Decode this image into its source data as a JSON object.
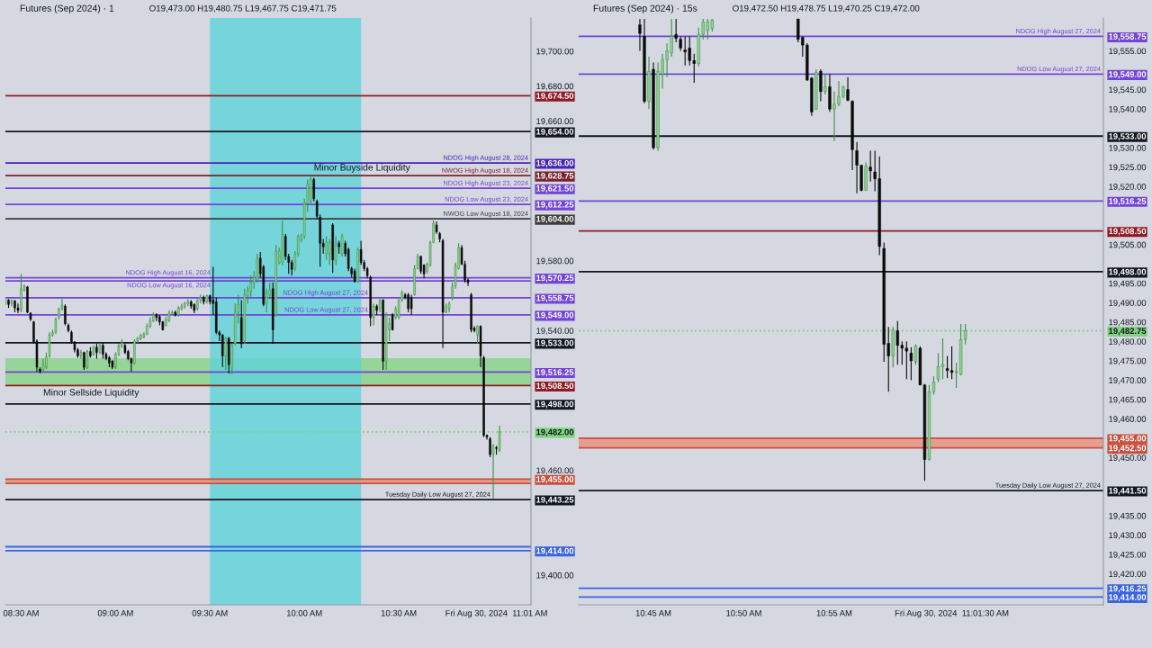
{
  "chart_data": [
    {
      "type": "candlestick",
      "title": "Futures (Sep 2024) · 1",
      "subtitle": "O19,473.00 H19,480.75 L19,467.75 C19,471.75",
      "x": [
        "2024-08-30T08:25",
        "2024-08-30T08:26",
        "2024-08-30T08:27",
        "2024-08-30T08:28",
        "2024-08-30T08:29",
        "2024-08-30T08:30",
        "2024-08-30T08:31",
        "2024-08-30T08:32",
        "2024-08-30T08:33",
        "2024-08-30T08:34",
        "2024-08-30T08:35",
        "2024-08-30T08:36",
        "2024-08-30T08:37",
        "2024-08-30T08:38",
        "2024-08-30T08:39",
        "2024-08-30T08:40",
        "2024-08-30T08:41",
        "2024-08-30T08:42",
        "2024-08-30T08:43",
        "2024-08-30T08:44",
        "2024-08-30T08:45",
        "2024-08-30T08:46",
        "2024-08-30T08:47",
        "2024-08-30T08:48",
        "2024-08-30T08:49",
        "2024-08-30T08:50",
        "2024-08-30T08:51",
        "2024-08-30T08:52",
        "2024-08-30T08:53",
        "2024-08-30T08:54",
        "2024-08-30T08:55",
        "2024-08-30T08:56",
        "2024-08-30T08:57",
        "2024-08-30T08:58",
        "2024-08-30T08:59",
        "2024-08-30T09:00",
        "2024-08-30T09:01",
        "2024-08-30T09:02",
        "2024-08-30T09:03",
        "2024-08-30T09:04",
        "2024-08-30T09:05",
        "2024-08-30T09:06",
        "2024-08-30T09:07",
        "2024-08-30T09:08",
        "2024-08-30T09:09",
        "2024-08-30T09:10",
        "2024-08-30T09:11",
        "2024-08-30T09:12",
        "2024-08-30T09:13",
        "2024-08-30T09:14",
        "2024-08-30T09:15",
        "2024-08-30T09:16",
        "2024-08-30T09:17",
        "2024-08-30T09:18",
        "2024-08-30T09:19",
        "2024-08-30T09:20",
        "2024-08-30T09:21",
        "2024-08-30T09:22",
        "2024-08-30T09:23",
        "2024-08-30T09:24",
        "2024-08-30T09:25",
        "2024-08-30T09:26",
        "2024-08-30T09:27",
        "2024-08-30T09:28",
        "2024-08-30T09:29",
        "2024-08-30T09:30",
        "2024-08-30T09:31",
        "2024-08-30T09:32",
        "2024-08-30T09:33",
        "2024-08-30T09:34",
        "2024-08-30T09:35",
        "2024-08-30T09:36",
        "2024-08-30T09:37",
        "2024-08-30T09:38",
        "2024-08-30T09:39",
        "2024-08-30T09:40",
        "2024-08-30T09:41",
        "2024-08-30T09:42",
        "2024-08-30T09:43",
        "2024-08-30T09:44",
        "2024-08-30T09:45",
        "2024-08-30T09:46",
        "2024-08-30T09:47",
        "2024-08-30T09:48",
        "2024-08-30T09:49",
        "2024-08-30T09:50",
        "2024-08-30T09:51",
        "2024-08-30T09:52",
        "2024-08-30T09:53",
        "2024-08-30T09:54",
        "2024-08-30T09:55",
        "2024-08-30T09:56",
        "2024-08-30T09:57",
        "2024-08-30T09:58",
        "2024-08-30T09:59",
        "2024-08-30T10:00",
        "2024-08-30T10:01",
        "2024-08-30T10:02",
        "2024-08-30T10:03",
        "2024-08-30T10:04",
        "2024-08-30T10:05",
        "2024-08-30T10:06",
        "2024-08-30T10:07",
        "2024-08-30T10:08",
        "2024-08-30T10:09",
        "2024-08-30T10:10",
        "2024-08-30T10:11",
        "2024-08-30T10:12",
        "2024-08-30T10:13",
        "2024-08-30T10:14",
        "2024-08-30T10:15",
        "2024-08-30T10:16",
        "2024-08-30T10:17",
        "2024-08-30T10:18",
        "2024-08-30T10:19",
        "2024-08-30T10:20",
        "2024-08-30T10:21",
        "2024-08-30T10:22",
        "2024-08-30T10:23",
        "2024-08-30T10:24",
        "2024-08-30T10:25",
        "2024-08-30T10:26",
        "2024-08-30T10:27",
        "2024-08-30T10:28",
        "2024-08-30T10:29",
        "2024-08-30T10:30",
        "2024-08-30T10:31",
        "2024-08-30T10:32",
        "2024-08-30T10:33",
        "2024-08-30T10:34",
        "2024-08-30T10:35",
        "2024-08-30T10:36",
        "2024-08-30T10:37",
        "2024-08-30T10:38",
        "2024-08-30T10:39",
        "2024-08-30T10:40",
        "2024-08-30T10:41",
        "2024-08-30T10:42",
        "2024-08-30T10:43",
        "2024-08-30T10:44",
        "2024-08-30T10:45",
        "2024-08-30T10:46",
        "2024-08-30T10:47",
        "2024-08-30T10:48",
        "2024-08-30T10:49",
        "2024-08-30T10:50",
        "2024-08-30T10:51",
        "2024-08-30T10:52",
        "2024-08-30T10:53",
        "2024-08-30T10:54",
        "2024-08-30T10:55",
        "2024-08-30T10:56",
        "2024-08-30T10:57",
        "2024-08-30T10:58",
        "2024-08-30T10:59",
        "2024-08-30T11:00",
        "2024-08-30T11:01",
        "2024-08-30T11:02"
      ],
      "ohlc": [
        [
          19555.5,
          19558,
          19554.5,
          19557.5
        ],
        [
          19557.5,
          19558,
          19553,
          19555
        ],
        [
          19555.5,
          19558,
          19554,
          19557
        ],
        [
          19557,
          19557.5,
          19550.5,
          19553
        ],
        [
          19553,
          19555.5,
          19550,
          19551.5
        ],
        [
          19551.5,
          19572.5,
          19550.5,
          19564
        ],
        [
          19563,
          19566.5,
          19562.5,
          19565.5
        ],
        [
          19565,
          19565.5,
          19550,
          19550.5
        ],
        [
          19550,
          19550.5,
          19545.5,
          19546.5
        ],
        [
          19545,
          19545.5,
          19532.5,
          19533.5
        ],
        [
          19534,
          19535,
          19516.5,
          19519
        ],
        [
          19518,
          19519,
          19515.5,
          19516.5
        ],
        [
          19517.5,
          19524,
          19516.5,
          19520
        ],
        [
          19519,
          19527.5,
          19518,
          19525
        ],
        [
          19525.5,
          19539,
          19524.5,
          19537.5
        ],
        [
          19537.5,
          19540.5,
          19536.5,
          19539
        ],
        [
          19539,
          19547.5,
          19538,
          19546.5
        ],
        [
          19547.5,
          19553,
          19546.5,
          19552.5
        ],
        [
          19552.5,
          19558,
          19551.5,
          19554.5
        ],
        [
          19554,
          19555,
          19543,
          19544
        ],
        [
          19543,
          19544,
          19539,
          19540
        ],
        [
          19539,
          19540,
          19532.5,
          19533.5
        ],
        [
          19533.5,
          19534,
          19527.5,
          19529
        ],
        [
          19529,
          19530,
          19524.5,
          19525.5
        ],
        [
          19525.5,
          19529,
          19524,
          19527.5
        ],
        [
          19527.5,
          19528,
          19517.5,
          19519
        ],
        [
          19519,
          19529,
          19518,
          19528
        ],
        [
          19528,
          19530.5,
          19524.5,
          19525.5
        ],
        [
          19526.5,
          19531.5,
          19525.5,
          19530.5
        ],
        [
          19530.5,
          19532.5,
          19524,
          19527.5
        ],
        [
          19527.5,
          19533,
          19526.5,
          19531.5
        ],
        [
          19531.5,
          19533,
          19524,
          19526.5
        ],
        [
          19526.5,
          19527.5,
          19523,
          19524
        ],
        [
          19524.5,
          19525.5,
          19519,
          19521.5
        ],
        [
          19522.5,
          19523,
          19518,
          19519
        ],
        [
          19519,
          19527.5,
          19518,
          19526.5
        ],
        [
          19526.5,
          19532.5,
          19525.5,
          19531.5
        ],
        [
          19531.5,
          19535,
          19530,
          19533
        ],
        [
          19531.5,
          19532.5,
          19526.5,
          19527.5
        ],
        [
          19528,
          19529,
          19523,
          19524
        ],
        [
          19524,
          19524.5,
          19516.5,
          19521.5
        ],
        [
          19521.5,
          19535,
          19520.5,
          19534
        ],
        [
          19534,
          19536.5,
          19533,
          19535.5
        ],
        [
          19535.5,
          19538,
          19534.5,
          19537.5
        ],
        [
          19536.5,
          19539,
          19535.5,
          19538
        ],
        [
          19538,
          19544,
          19537.5,
          19542.5
        ],
        [
          19542.5,
          19547.5,
          19541.5,
          19545.5
        ],
        [
          19545.5,
          19550.5,
          19545,
          19549
        ],
        [
          19549,
          19550,
          19545.5,
          19547.5
        ],
        [
          19548,
          19549,
          19543,
          19545
        ],
        [
          19545,
          19545.5,
          19540,
          19540.5
        ],
        [
          19543,
          19548,
          19542.5,
          19546.5
        ],
        [
          19545.5,
          19551.5,
          19545,
          19550
        ],
        [
          19550,
          19551.5,
          19549,
          19550.5
        ],
        [
          19550.5,
          19551.5,
          19548,
          19549
        ],
        [
          19549,
          19554,
          19548,
          19553
        ],
        [
          19552.5,
          19555.5,
          19551.5,
          19554
        ],
        [
          19554,
          19556.5,
          19552.5,
          19555.5
        ],
        [
          19555.5,
          19558,
          19554,
          19556.5
        ],
        [
          19556.5,
          19557.5,
          19552.5,
          19554
        ],
        [
          19555,
          19555.5,
          19550,
          19551.5
        ],
        [
          19552.5,
          19558,
          19551.5,
          19557.5
        ],
        [
          19557.5,
          19560.5,
          19555.5,
          19559
        ],
        [
          19559,
          19560,
          19555,
          19556.5
        ],
        [
          19556.5,
          19560.5,
          19555.5,
          19560
        ],
        [
          19560,
          19560.5,
          19555,
          19556.5
        ],
        [
          19557.5,
          19576.5,
          19549,
          19555.5
        ],
        [
          19556.5,
          19559,
          19538,
          19539
        ],
        [
          19539,
          19540,
          19534,
          19537.5
        ],
        [
          19537.5,
          19538,
          19519,
          19525.5
        ],
        [
          19525.5,
          19536.5,
          19517.5,
          19535.5
        ],
        [
          19535.5,
          19536.5,
          19515.5,
          19520.5
        ],
        [
          19519,
          19532.5,
          19515,
          19531.5
        ],
        [
          19532.5,
          19555.5,
          19531.5,
          19550.5
        ],
        [
          19550.5,
          19560.5,
          19544,
          19555
        ],
        [
          19547.5,
          19557.5,
          19530,
          19532.5
        ],
        [
          19534,
          19564,
          19532.5,
          19560.5
        ],
        [
          19560,
          19565.5,
          19555.5,
          19563
        ],
        [
          19562.5,
          19571.5,
          19559,
          19567.5
        ],
        [
          19567.5,
          19574,
          19564,
          19570.5
        ],
        [
          19569,
          19584,
          19567.5,
          19581.5
        ],
        [
          19581.5,
          19585,
          19570.5,
          19572.5
        ],
        [
          19576.5,
          19577.5,
          19554,
          19555
        ],
        [
          19555.5,
          19564,
          19550.5,
          19561.5
        ],
        [
          19560.5,
          19567.5,
          19558,
          19563
        ],
        [
          19564,
          19567.5,
          19532.5,
          19540.5
        ],
        [
          19549,
          19589,
          19548,
          19585.5
        ],
        [
          19579,
          19587.5,
          19578,
          19585.5
        ],
        [
          19579,
          19603,
          19577.5,
          19595
        ],
        [
          19594,
          19595.5,
          19580.5,
          19582.5
        ],
        [
          19582.5,
          19584,
          19572.5,
          19579
        ],
        [
          19579,
          19580.5,
          19571.5,
          19575
        ],
        [
          19575.5,
          19585.5,
          19574,
          19584
        ],
        [
          19584,
          19595,
          19582.5,
          19594
        ],
        [
          19592.5,
          19595.5,
          19590.5,
          19594
        ],
        [
          19594,
          19615.5,
          19592.5,
          19613
        ],
        [
          19613,
          19626.5,
          19608,
          19624
        ],
        [
          19614,
          19628,
          19612.5,
          19626.5
        ],
        [
          19626.5,
          19627.5,
          19614,
          19615.5
        ],
        [
          19614,
          19615,
          19604,
          19605.5
        ],
        [
          19605,
          19606.5,
          19576.5,
          19590
        ],
        [
          19590,
          19592.5,
          19584,
          19588
        ],
        [
          19584,
          19594,
          19580.5,
          19590.5
        ],
        [
          19584,
          19592.5,
          19577.5,
          19590.5
        ],
        [
          19600.5,
          19601.5,
          19573,
          19580.5
        ],
        [
          19580,
          19594,
          19577.5,
          19589
        ],
        [
          19590,
          19591.5,
          19584,
          19588
        ],
        [
          19584,
          19595.5,
          19582.5,
          19594
        ],
        [
          19590,
          19591.5,
          19582.5,
          19584
        ],
        [
          19586.5,
          19587.5,
          19574,
          19575.5
        ],
        [
          19575.5,
          19576.5,
          19570.5,
          19572.5
        ],
        [
          19574,
          19575.5,
          19567.5,
          19568
        ],
        [
          19568,
          19587.5,
          19567.5,
          19586.5
        ],
        [
          19586.5,
          19591.5,
          19577.5,
          19579
        ],
        [
          19579,
          19580.5,
          19574,
          19575.5
        ],
        [
          19575.5,
          19576.5,
          19570,
          19571.5
        ],
        [
          19570.5,
          19571.5,
          19542.5,
          19547.5
        ],
        [
          19547.5,
          19555.5,
          19543,
          19554
        ],
        [
          19554,
          19555,
          19549,
          19551.5
        ],
        [
          19552.5,
          19558,
          19550.5,
          19557.5
        ],
        [
          19557.5,
          19558,
          19517.5,
          19522.5
        ],
        [
          19522.5,
          19550.5,
          19517.5,
          19549
        ],
        [
          19540.5,
          19547.5,
          19534,
          19544
        ],
        [
          19549,
          19550,
          19540,
          19540.5
        ],
        [
          19547.5,
          19554,
          19546.5,
          19552.5
        ],
        [
          19547.5,
          19558,
          19546.5,
          19557.5
        ],
        [
          19557.5,
          19563,
          19556.5,
          19561.5
        ],
        [
          19560.5,
          19561.5,
          19558,
          19559
        ],
        [
          19560.5,
          19561.5,
          19550.5,
          19552.5
        ],
        [
          19559,
          19560.5,
          19549,
          19552.5
        ],
        [
          19560.5,
          19577.5,
          19560,
          19575.5
        ],
        [
          19575.5,
          19584,
          19575,
          19582.5
        ],
        [
          19582.5,
          19583,
          19572.5,
          19574
        ],
        [
          19577.5,
          19578,
          19570,
          19572.5
        ],
        [
          19574,
          19579,
          19572.5,
          19578
        ],
        [
          19577.5,
          19591.5,
          19576.5,
          19590.5
        ],
        [
          19590.5,
          19603,
          19590,
          19601.5
        ],
        [
          19600.5,
          19602.5,
          19595.5,
          19596.5
        ],
        [
          19595.5,
          19596.5,
          19590.5,
          19592.5
        ],
        [
          19591.5,
          19592.5,
          19530,
          19550.5
        ],
        [
          19550.5,
          19555.5,
          19550,
          19554
        ],
        [
          19552.5,
          19556.5,
          19550.5,
          19555.5
        ],
        [
          19559,
          19567.5,
          19557.5,
          19565.5
        ],
        [
          19565.5,
          19579,
          19564,
          19577.5
        ],
        [
          19575.5,
          19590,
          19575,
          19587.5
        ],
        [
          19587.5,
          19589,
          19577.5,
          19578
        ],
        [
          19578,
          19580,
          19567.5,
          19569
        ],
        [
          19569,
          19570,
          19565.5,
          19567.5
        ],
        [
          19560.5,
          19561.5,
          19539,
          19540.5
        ],
        [
          19541.5,
          19542.5,
          19539,
          19540
        ],
        [
          19537.5,
          19543,
          19532.5,
          19542.5
        ],
        [
          19542.5,
          19543,
          19519,
          19525.5
        ],
        [
          19524.5,
          19525.5,
          19479,
          19480
        ],
        [
          19480,
          19480.5,
          19477.5,
          19479
        ],
        [
          19478,
          19479,
          19467.5,
          19469
        ],
        [
          19469,
          19475,
          19444,
          19474
        ],
        [
          19473,
          19474,
          19469,
          19472.5
        ],
        [
          19471.5,
          19485.5,
          19470.5,
          19482
        ]
      ],
      "xlim": [
        "2024-08-30T08:25",
        "2024-08-30T11:12"
      ],
      "xticks": [
        {
          "value": "2024-08-30T08:30",
          "label": "08:30 AM"
        },
        {
          "value": "2024-08-30T09:00",
          "label": "09:00 AM"
        },
        {
          "value": "2024-08-30T09:30",
          "label": "09:30 AM"
        },
        {
          "value": "2024-08-30T10:00",
          "label": "10:00 AM"
        },
        {
          "value": "2024-08-30T10:30",
          "label": "10:30 AM"
        },
        {
          "value": "2024-08-30T11:01",
          "label": "Fri Aug 30, 2024  11:01 AM"
        }
      ],
      "ylim": [
        19383,
        19719
      ],
      "yticks": [
        {
          "value": 19700,
          "label": "19,700.00"
        },
        {
          "value": 19680,
          "label": "19,680.00"
        },
        {
          "value": 19674.5,
          "label": "19,674.50"
        },
        {
          "value": 19660,
          "label": "19,660.00"
        },
        {
          "value": 19654,
          "label": "19,654.00"
        },
        {
          "value": 19636,
          "label": "19,636.00"
        },
        {
          "value": 19628.75,
          "label": "19,628.75"
        },
        {
          "value": 19621.5,
          "label": "19,621.50"
        },
        {
          "value": 19612.25,
          "label": "19,612.25"
        },
        {
          "value": 19604,
          "label": "19,604.00"
        },
        {
          "value": 19580,
          "label": "19,580.00"
        },
        {
          "value": 19570.25,
          "label": "19,570.25"
        },
        {
          "value": 19558.75,
          "label": "19,558.75"
        },
        {
          "value": 19549,
          "label": "19,549.00"
        },
        {
          "value": 19540,
          "label": "19,540.00"
        },
        {
          "value": 19533,
          "label": "19,533.00"
        },
        {
          "value": 19516.25,
          "label": "19,516.25"
        },
        {
          "value": 19508.5,
          "label": "19,508.50"
        },
        {
          "value": 19498,
          "label": "19,498.00"
        },
        {
          "value": 19482,
          "label": "19,482.00"
        },
        {
          "value": 19460,
          "label": "19,460.00"
        },
        {
          "value": 19455,
          "label": "19,455.00"
        },
        {
          "value": 19443.25,
          "label": "19,443.25"
        },
        {
          "value": 19414,
          "label": "19,414.00"
        },
        {
          "value": 19400,
          "label": "19,400.00"
        }
      ],
      "ref_lines": [
        {
          "axis": "y",
          "value": 19674.5,
          "color": "#8e1b24"
        },
        {
          "axis": "y",
          "value": 19654,
          "color": "#131722"
        },
        {
          "axis": "y",
          "value": 19636,
          "label": "NDOG High August 28, 2024",
          "color": "#4a23b5"
        },
        {
          "axis": "y",
          "value": 19628.75,
          "label": "NWOG High August 18, 2024",
          "color": "#7a2330"
        },
        {
          "axis": "y",
          "value": 19621.5,
          "label": "NDOG High August 23, 2024",
          "color": "#7245d6"
        },
        {
          "axis": "y",
          "value": 19612.25,
          "label": "NDOG Low August 23, 2024",
          "color": "#7245d6"
        },
        {
          "axis": "y",
          "value": 19604,
          "label": "NWOG Low August 18, 2024",
          "color": "#3d3d3d"
        },
        {
          "axis": "y",
          "value": 19570.25,
          "label": "NDOG High August 16, 2024",
          "color": "#7245d6"
        },
        {
          "axis": "y",
          "value": 19568.5,
          "label": "NDOG Low August 16, 2024",
          "color": "#7245d6"
        },
        {
          "axis": "y",
          "value": 19558.75,
          "label": "NDOG High August 27, 2024",
          "color": "#7245d6"
        },
        {
          "axis": "y",
          "value": 19549,
          "label": "NDOG Low August 27, 2024",
          "color": "#7245d6"
        },
        {
          "axis": "y",
          "value": 19533,
          "color": "#131722"
        },
        {
          "axis": "y",
          "value": 19516.25,
          "color": "#7245d6"
        },
        {
          "axis": "y",
          "value": 19508.5,
          "color": "#8e1b24"
        },
        {
          "axis": "y",
          "value": 19498,
          "color": "#131722"
        },
        {
          "axis": "y",
          "value": 19482,
          "color": "#7ed47e",
          "line_style": "dotted"
        },
        {
          "axis": "y",
          "value": 19455,
          "color": "#c8503c"
        },
        {
          "axis": "y",
          "value": 19452.5,
          "color": "#c8503c"
        },
        {
          "axis": "y",
          "value": 19443.25,
          "label": "Tuesday Daily Low August 27, 2024",
          "color": "#131722"
        },
        {
          "axis": "y",
          "value": 19416.25,
          "color": "#3a64e0"
        },
        {
          "axis": "y",
          "value": 19414,
          "color": "#3a64e0"
        }
      ],
      "bands": [
        {
          "axis": "y",
          "from": 19508.75,
          "to": 19524.25,
          "color": "#86d486"
        },
        {
          "axis": "x",
          "from": "2024-08-30T09:30",
          "to": "2024-08-30T10:18",
          "color": "#5ed3d9"
        },
        {
          "axis": "y",
          "from": 19452.5,
          "to": 19455,
          "color": "#e8907a"
        }
      ],
      "annotations": [
        {
          "text": "Minor Buyside Liquidity",
          "x": "2024-08-30T10:03",
          "y": 19628.75
        },
        {
          "text": "Minor Sellside Liquidity",
          "x": "2024-08-30T08:37",
          "y": 19508.5
        }
      ]
    },
    {
      "type": "candlestick",
      "title": "Futures (Sep 2024) · 15s",
      "subtitle": "O19,472.50 H19,478.75 L19,470.25 C19,472.00",
      "x": [
        "2024-08-30T10:44:15",
        "2024-08-30T10:44:30",
        "2024-08-30T10:44:45",
        "2024-08-30T10:45:00",
        "2024-08-30T10:45:15",
        "2024-08-30T10:45:30",
        "2024-08-30T10:45:45",
        "2024-08-30T10:46:00",
        "2024-08-30T10:46:15",
        "2024-08-30T10:46:30",
        "2024-08-30T10:46:45",
        "2024-08-30T10:47:00",
        "2024-08-30T10:47:15",
        "2024-08-30T10:47:30",
        "2024-08-30T10:47:45",
        "2024-08-30T10:48:00",
        "2024-08-30T10:48:15",
        "2024-08-30T10:53:00",
        "2024-08-30T10:53:15",
        "2024-08-30T10:53:30",
        "2024-08-30T10:53:45",
        "2024-08-30T10:54:00",
        "2024-08-30T10:54:15",
        "2024-08-30T10:54:30",
        "2024-08-30T10:54:45",
        "2024-08-30T10:55:00",
        "2024-08-30T10:55:15",
        "2024-08-30T10:55:30",
        "2024-08-30T10:55:45",
        "2024-08-30T10:56:00",
        "2024-08-30T10:56:15",
        "2024-08-30T10:56:30",
        "2024-08-30T10:56:45",
        "2024-08-30T10:57:00",
        "2024-08-30T10:57:15",
        "2024-08-30T10:57:30",
        "2024-08-30T10:57:45",
        "2024-08-30T10:58:00",
        "2024-08-30T10:58:15",
        "2024-08-30T10:58:30",
        "2024-08-30T10:58:45",
        "2024-08-30T10:59:00",
        "2024-08-30T10:59:15",
        "2024-08-30T10:59:30",
        "2024-08-30T10:59:45",
        "2024-08-30T11:00:00",
        "2024-08-30T11:00:15",
        "2024-08-30T11:00:30",
        "2024-08-30T11:00:45",
        "2024-08-30T11:01:00",
        "2024-08-30T11:01:15",
        "2024-08-30T11:01:30",
        "2024-08-30T11:01:45",
        "2024-08-30T11:02:00",
        "2024-08-30T11:02:15"
      ],
      "ohlc": [
        [
          19561.75,
          19563.25,
          19555,
          19559.5
        ],
        [
          19558.75,
          19563.25,
          19541.5,
          19542
        ],
        [
          19542,
          19553.5,
          19540,
          19549.75
        ],
        [
          19550.25,
          19552,
          19529.5,
          19530
        ],
        [
          19530,
          19552,
          19529.25,
          19549.75
        ],
        [
          19549,
          19554.25,
          19545.25,
          19552.75
        ],
        [
          19552.75,
          19557,
          19548.25,
          19555
        ],
        [
          19554.5,
          19563.25,
          19553.5,
          19558.75
        ],
        [
          19559.25,
          19563.25,
          19557.25,
          19558.25
        ],
        [
          19558,
          19558.75,
          19555,
          19555.75
        ],
        [
          19555.25,
          19558.75,
          19551.25,
          19554.75
        ],
        [
          19555.75,
          19558.75,
          19551.25,
          19552.5
        ],
        [
          19552.5,
          19554.25,
          19546.75,
          19551.75
        ],
        [
          19551.75,
          19561,
          19551,
          19559.25
        ],
        [
          19559.25,
          19563.25,
          19558,
          19562.5
        ],
        [
          19560.25,
          19563.25,
          19558,
          19562.5
        ],
        [
          19560.75,
          19563.25,
          19560,
          19563
        ],
        [
          19563.25,
          19563.25,
          19557.25,
          19558
        ],
        [
          19558.5,
          19558.75,
          19553.5,
          19556.5
        ],
        [
          19556.5,
          19557,
          19547.25,
          19547.5
        ],
        [
          19548,
          19548.25,
          19538.25,
          19539.25
        ],
        [
          19540,
          19550.25,
          19539.75,
          19549.5
        ],
        [
          19549.75,
          19550.25,
          19542,
          19544.5
        ],
        [
          19544.5,
          19549,
          19543.75,
          19545.75
        ],
        [
          19545.75,
          19549,
          19539.25,
          19540
        ],
        [
          19540,
          19544.5,
          19531.75,
          19541.25
        ],
        [
          19541.25,
          19547.25,
          19540.75,
          19543.25
        ],
        [
          19543.25,
          19546,
          19542.75,
          19545.75
        ],
        [
          19545,
          19548.25,
          19542,
          19542.25
        ],
        [
          19542,
          19542.25,
          19524.25,
          19529.5
        ],
        [
          19529.25,
          19531.5,
          19518.25,
          19525.5
        ],
        [
          19525.5,
          19525.5,
          19518.75,
          19519
        ],
        [
          19519,
          19526.25,
          19519,
          19525.25
        ],
        [
          19525,
          19529.25,
          19521.25,
          19524
        ],
        [
          19523.75,
          19529.25,
          19518.75,
          19522
        ],
        [
          19522,
          19527.75,
          19502.25,
          19504.5
        ],
        [
          19504,
          19505.5,
          19474.75,
          19479.25
        ],
        [
          19479.5,
          19483.75,
          19467,
          19476.25
        ],
        [
          19476.25,
          19483.75,
          19473.25,
          19483
        ],
        [
          19482.75,
          19485.25,
          19474,
          19479
        ],
        [
          19479,
          19480,
          19474,
          19478.25
        ],
        [
          19478.25,
          19480,
          19470.25,
          19477.5
        ],
        [
          19477,
          19478.5,
          19470,
          19475
        ],
        [
          19474.75,
          19479.25,
          19474,
          19478.75
        ],
        [
          19478.25,
          19478.75,
          19468.75,
          19468.75
        ],
        [
          19468.75,
          19469,
          19444,
          19449.5
        ],
        [
          19449.5,
          19468.75,
          19449.25,
          19467
        ],
        [
          19467,
          19471,
          19466.25,
          19469.5
        ],
        [
          19470.25,
          19477,
          19469.5,
          19473.5
        ],
        [
          19473.5,
          19480.75,
          19470.25,
          19474
        ],
        [
          19473,
          19476.25,
          19470.5,
          19472.5
        ],
        [
          19472.5,
          19478.75,
          19470.25,
          19472
        ],
        [
          19472,
          19474.5,
          19468,
          19472.25
        ],
        [
          19471.5,
          19484.5,
          19471.25,
          19480.5
        ],
        [
          19480.5,
          19484.5,
          19479.25,
          19482.75
        ]
      ],
      "xlim": [
        "2024-08-30T10:40:52",
        "2024-08-30T11:09:53"
      ],
      "xticks": [
        {
          "value": "2024-08-30T10:45:00",
          "label": "10:45 AM"
        },
        {
          "value": "2024-08-30T10:50:00",
          "label": "10:50 AM"
        },
        {
          "value": "2024-08-30T10:55:00",
          "label": "10:55 AM"
        },
        {
          "value": "2024-08-30T11:01:30",
          "label": "Fri Aug 30, 2024  11:01:30 AM"
        }
      ],
      "ylim": [
        19412,
        19563.5
      ],
      "yticks": [
        {
          "value": 19558.75,
          "label": "19,558.75"
        },
        {
          "value": 19555,
          "label": "19,555.00"
        },
        {
          "value": 19549,
          "label": "19,549.00"
        },
        {
          "value": 19545,
          "label": "19,545.00"
        },
        {
          "value": 19540,
          "label": "19,540.00"
        },
        {
          "value": 19533,
          "label": "19,533.00"
        },
        {
          "value": 19530,
          "label": "19,530.00"
        },
        {
          "value": 19525,
          "label": "19,525.00"
        },
        {
          "value": 19520,
          "label": "19,520.00"
        },
        {
          "value": 19516.25,
          "label": "19,516.25"
        },
        {
          "value": 19508.5,
          "label": "19,508.50"
        },
        {
          "value": 19505,
          "label": "19,505.00"
        },
        {
          "value": 19498,
          "label": "19,498.00"
        },
        {
          "value": 19495,
          "label": "19,495.00"
        },
        {
          "value": 19490,
          "label": "19,490.00"
        },
        {
          "value": 19485,
          "label": "19,485.00"
        },
        {
          "value": 19482.75,
          "label": "19,482.75"
        },
        {
          "value": 19480,
          "label": "19,480.00"
        },
        {
          "value": 19475,
          "label": "19,475.00"
        },
        {
          "value": 19470,
          "label": "19,470.00"
        },
        {
          "value": 19465,
          "label": "19,465.00"
        },
        {
          "value": 19460,
          "label": "19,460.00"
        },
        {
          "value": 19455,
          "label": "19,455.00"
        },
        {
          "value": 19452.5,
          "label": "19,452.50"
        },
        {
          "value": 19450,
          "label": "19,450.00"
        },
        {
          "value": 19441.5,
          "label": "19,441.50"
        },
        {
          "value": 19435,
          "label": "19,435.00"
        },
        {
          "value": 19430,
          "label": "19,430.00"
        },
        {
          "value": 19425,
          "label": "19,425.00"
        },
        {
          "value": 19420,
          "label": "19,420.00"
        },
        {
          "value": 19416.25,
          "label": "19,416.25"
        },
        {
          "value": 19414,
          "label": "19,414.00"
        }
      ],
      "ref_lines": [
        {
          "axis": "y",
          "value": 19558.75,
          "label": "NDOG High August 27, 2024",
          "color": "#7245d6"
        },
        {
          "axis": "y",
          "value": 19549,
          "label": "NDOG Low August 27, 2024",
          "color": "#7245d6"
        },
        {
          "axis": "y",
          "value": 19533,
          "color": "#131722"
        },
        {
          "axis": "y",
          "value": 19516.25,
          "color": "#7245d6"
        },
        {
          "axis": "y",
          "value": 19508.5,
          "color": "#8e1b24"
        },
        {
          "axis": "y",
          "value": 19498,
          "color": "#131722"
        },
        {
          "axis": "y",
          "value": 19482.75,
          "color": "#7ed47e",
          "line_style": "dotted"
        },
        {
          "axis": "y",
          "value": 19455,
          "color": "#c8503c"
        },
        {
          "axis": "y",
          "value": 19452.5,
          "color": "#c8503c"
        },
        {
          "axis": "y",
          "value": 19441.5,
          "label": "Tuesday Daily Low August 27, 2024",
          "color": "#131722"
        },
        {
          "axis": "y",
          "value": 19416.25,
          "color": "#3a64e0"
        },
        {
          "axis": "y",
          "value": 19414,
          "color": "#3a64e0"
        }
      ],
      "bands": [
        {
          "axis": "y",
          "from": 19452.5,
          "to": 19455,
          "color": "#e8907a"
        }
      ]
    }
  ]
}
